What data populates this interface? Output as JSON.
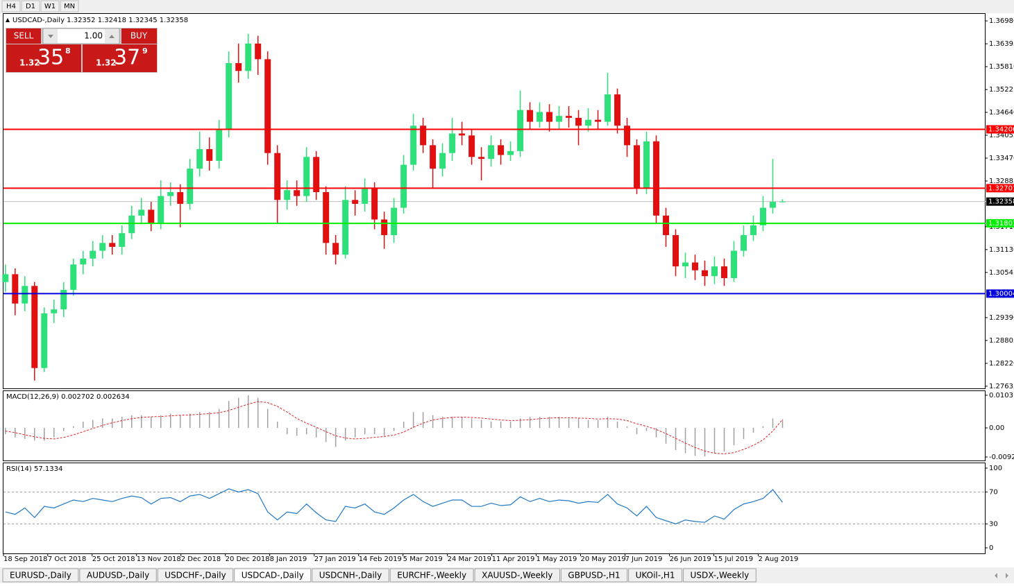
{
  "toolbar": {
    "timeframes": [
      "H4",
      "D1",
      "W1",
      "MN"
    ]
  },
  "chart_header": "USDCAD-,Daily  1.32352 1.32418 1.32345 1.32358",
  "trade_panel": {
    "sell_label": "SELL",
    "buy_label": "BUY",
    "lot": "1.00",
    "sell_price": {
      "prefix": "1.32",
      "pips": "35",
      "point": "8"
    },
    "buy_price": {
      "prefix": "1.32",
      "pips": "37",
      "point": "9"
    }
  },
  "chart_data": [
    {
      "type": "candlestick",
      "up_color": "#2ee07a",
      "down_color": "#e01010",
      "xlim": [
        -0.2,
        100.9
      ],
      "ylim": [
        1.2758,
        1.3716
      ],
      "yticks": [
        {
          "value": 1.3698,
          "label": "1.36980"
        },
        {
          "value": 1.36395,
          "label": "1.36395"
        },
        {
          "value": 1.3581,
          "label": "1.35810"
        },
        {
          "value": 1.35225,
          "label": "1.35225"
        },
        {
          "value": 1.3464,
          "label": "1.34640"
        },
        {
          "value": 1.34055,
          "label": "1.34055"
        },
        {
          "value": 1.3347,
          "label": "1.33470"
        },
        {
          "value": 1.32885,
          "label": "1.32885"
        },
        {
          "value": 1.31715,
          "label": "1.31715"
        },
        {
          "value": 1.3113,
          "label": "1.31130"
        },
        {
          "value": 1.30545,
          "label": "1.30545"
        },
        {
          "value": 1.2939,
          "label": "1.29390"
        },
        {
          "value": 1.28805,
          "label": "1.28805"
        },
        {
          "value": 1.2822,
          "label": "1.28220"
        },
        {
          "value": 1.27635,
          "label": "1.27635"
        }
      ],
      "xticks": [
        {
          "value": -0.2,
          "label": "18 Sep 2018"
        },
        {
          "value": 4.36,
          "label": "7 Oct 2018"
        },
        {
          "value": 8.93,
          "label": "25 Oct 2018"
        },
        {
          "value": 13.5,
          "label": "13 Nov 2018"
        },
        {
          "value": 18.07,
          "label": "2 Dec 2018"
        },
        {
          "value": 22.64,
          "label": "20 Dec 2018"
        },
        {
          "value": 27.21,
          "label": "8 Jan 2019"
        },
        {
          "value": 31.79,
          "label": "27 Jan 2019"
        },
        {
          "value": 36.36,
          "label": "14 Feb 2019"
        },
        {
          "value": 40.93,
          "label": "5 Mar 2019"
        },
        {
          "value": 45.5,
          "label": "24 Mar 2019"
        },
        {
          "value": 50.07,
          "label": "11 Apr 2019"
        },
        {
          "value": 54.64,
          "label": "1 May 2019"
        },
        {
          "value": 59.21,
          "label": "20 May 2019"
        },
        {
          "value": 63.79,
          "label": "7 Jun 2019"
        },
        {
          "value": 68.36,
          "label": "26 Jun 2019"
        },
        {
          "value": 72.93,
          "label": "15 Jul 2019"
        },
        {
          "value": 77.5,
          "label": "2 Aug 2019"
        }
      ],
      "levels": [
        {
          "value": 1.34206,
          "color": "#ff0000"
        },
        {
          "value": 1.32701,
          "color": "#ff0000"
        },
        {
          "value": 1.31801,
          "color": "#00ee00"
        },
        {
          "value": 1.30004,
          "color": "#0000dd"
        }
      ],
      "last": 1.32358,
      "ohlc": [
        [
          1.303,
          1.3075,
          1.3005,
          1.305
        ],
        [
          1.305,
          1.3065,
          1.2945,
          1.2975
        ],
        [
          1.2975,
          1.3045,
          1.2955,
          1.302
        ],
        [
          1.302,
          1.303,
          1.2778,
          1.281
        ],
        [
          1.281,
          1.2965,
          1.28,
          1.295
        ],
        [
          1.295,
          1.2985,
          1.2925,
          1.296
        ],
        [
          1.296,
          1.303,
          1.294,
          1.301
        ],
        [
          1.301,
          1.309,
          1.2995,
          1.3075
        ],
        [
          1.3075,
          1.311,
          1.305,
          1.309
        ],
        [
          1.309,
          1.3135,
          1.307,
          1.311
        ],
        [
          1.311,
          1.315,
          1.309,
          1.313
        ],
        [
          1.313,
          1.315,
          1.31,
          1.312
        ],
        [
          1.312,
          1.3175,
          1.31,
          1.3155
        ],
        [
          1.3155,
          1.3225,
          1.314,
          1.32
        ],
        [
          1.32,
          1.3245,
          1.318,
          1.3215
        ],
        [
          1.3215,
          1.3235,
          1.316,
          1.318
        ],
        [
          1.318,
          1.329,
          1.3165,
          1.325
        ],
        [
          1.325,
          1.3285,
          1.3225,
          1.326
        ],
        [
          1.326,
          1.328,
          1.317,
          1.323
        ],
        [
          1.323,
          1.3345,
          1.3215,
          1.332
        ],
        [
          1.332,
          1.3415,
          1.33,
          1.337
        ],
        [
          1.337,
          1.34,
          1.3315,
          1.334
        ],
        [
          1.334,
          1.3445,
          1.332,
          1.342
        ],
        [
          1.342,
          1.362,
          1.34,
          1.359
        ],
        [
          1.359,
          1.364,
          1.354,
          1.357
        ],
        [
          1.357,
          1.3665,
          1.355,
          1.364
        ],
        [
          1.364,
          1.366,
          1.356,
          1.36
        ],
        [
          1.36,
          1.362,
          1.333,
          1.336
        ],
        [
          1.336,
          1.338,
          1.318,
          1.324
        ],
        [
          1.324,
          1.329,
          1.3215,
          1.3265
        ],
        [
          1.3265,
          1.329,
          1.3225,
          1.325
        ],
        [
          1.325,
          1.3375,
          1.3235,
          1.335
        ],
        [
          1.335,
          1.3365,
          1.324,
          1.326
        ],
        [
          1.326,
          1.3275,
          1.31,
          1.313
        ],
        [
          1.313,
          1.315,
          1.3075,
          1.31
        ],
        [
          1.31,
          1.3275,
          1.309,
          1.324
        ],
        [
          1.324,
          1.3265,
          1.32,
          1.323
        ],
        [
          1.323,
          1.3295,
          1.321,
          1.327
        ],
        [
          1.327,
          1.3285,
          1.3165,
          1.319
        ],
        [
          1.319,
          1.321,
          1.3115,
          1.315
        ],
        [
          1.315,
          1.3245,
          1.313,
          1.322
        ],
        [
          1.322,
          1.3355,
          1.3205,
          1.333
        ],
        [
          1.333,
          1.346,
          1.3315,
          1.343
        ],
        [
          1.343,
          1.345,
          1.336,
          1.338
        ],
        [
          1.338,
          1.3395,
          1.327,
          1.332
        ],
        [
          1.332,
          1.3385,
          1.33,
          1.336
        ],
        [
          1.336,
          1.345,
          1.334,
          1.341
        ],
        [
          1.341,
          1.344,
          1.338,
          1.3405
        ],
        [
          1.3405,
          1.342,
          1.333,
          1.335
        ],
        [
          1.335,
          1.3375,
          1.329,
          1.3345
        ],
        [
          1.3345,
          1.3405,
          1.3325,
          1.338
        ],
        [
          1.338,
          1.3395,
          1.333,
          1.3355
        ],
        [
          1.3355,
          1.339,
          1.334,
          1.3365
        ],
        [
          1.3365,
          1.352,
          1.335,
          1.347
        ],
        [
          1.347,
          1.349,
          1.342,
          1.344
        ],
        [
          1.344,
          1.349,
          1.3425,
          1.3465
        ],
        [
          1.3465,
          1.3485,
          1.3415,
          1.344
        ],
        [
          1.344,
          1.348,
          1.342,
          1.3455
        ],
        [
          1.3455,
          1.348,
          1.3425,
          1.345
        ],
        [
          1.345,
          1.347,
          1.338,
          1.343
        ],
        [
          1.343,
          1.3475,
          1.3415,
          1.3445
        ],
        [
          1.3445,
          1.347,
          1.342,
          1.344
        ],
        [
          1.344,
          1.3565,
          1.343,
          1.351
        ],
        [
          1.351,
          1.3525,
          1.341,
          1.343
        ],
        [
          1.343,
          1.345,
          1.335,
          1.338
        ],
        [
          1.338,
          1.3395,
          1.3255,
          1.327
        ],
        [
          1.327,
          1.3415,
          1.3255,
          1.339
        ],
        [
          1.339,
          1.3405,
          1.318,
          1.32
        ],
        [
          1.32,
          1.322,
          1.312,
          1.315
        ],
        [
          1.315,
          1.3165,
          1.3045,
          1.307
        ],
        [
          1.307,
          1.3105,
          1.304,
          1.308
        ],
        [
          1.308,
          1.31,
          1.3035,
          1.306
        ],
        [
          1.306,
          1.3085,
          1.302,
          1.3045
        ],
        [
          1.3045,
          1.3095,
          1.3025,
          1.307
        ],
        [
          1.307,
          1.309,
          1.302,
          1.304
        ],
        [
          1.304,
          1.3135,
          1.303,
          1.311
        ],
        [
          1.311,
          1.3175,
          1.3095,
          1.315
        ],
        [
          1.315,
          1.32,
          1.3135,
          1.3175
        ],
        [
          1.3175,
          1.325,
          1.316,
          1.322
        ],
        [
          1.322,
          1.3345,
          1.3205,
          1.3235
        ],
        [
          1.32352,
          1.32418,
          1.32345,
          1.32358
        ]
      ]
    },
    {
      "type": "macd",
      "title": "MACD(12,26,9) 0.002702 0.002634",
      "xlim": [
        -0.2,
        100.9
      ],
      "ylim": [
        -0.01051,
        0.01139
      ],
      "color": "#a0a0a0",
      "signal_color": "#e02020",
      "yticks": [
        0.010311,
        {
          "value": 0,
          "label": "0.00"
        },
        {
          "value": -0.0092,
          "label": "-0.00920"
        }
      ],
      "values": [
        -0.002,
        -0.003,
        -0.0035,
        -0.004,
        -0.004,
        -0.003,
        -0.001,
        0.0005,
        0.002,
        0.0025,
        0.003,
        0.003,
        0.0035,
        0.004,
        0.004,
        0.0035,
        0.004,
        0.0045,
        0.004,
        0.0045,
        0.005,
        0.005,
        0.006,
        0.0085,
        0.0095,
        0.0103,
        0.0095,
        0.006,
        0.002,
        -0.002,
        -0.0025,
        -0.002,
        -0.003,
        -0.0045,
        -0.006,
        -0.004,
        -0.003,
        -0.002,
        -0.002,
        -0.0025,
        -0.001,
        0.002,
        0.005,
        0.005,
        0.004,
        0.0035,
        0.0035,
        0.0035,
        0.003,
        0.0025,
        0.002,
        0.002,
        0.002,
        0.003,
        0.0035,
        0.0035,
        0.0035,
        0.0035,
        0.003,
        0.003,
        0.0025,
        0.0025,
        0.0035,
        0.002,
        0.0005,
        -0.002,
        -0.001,
        -0.003,
        -0.005,
        -0.007,
        -0.008,
        -0.0088,
        -0.009,
        -0.008,
        -0.0075,
        -0.0055,
        -0.0035,
        -0.0015,
        0.0005,
        0.003,
        0.002702
      ],
      "signal": [
        -0.001,
        -0.0015,
        -0.0022,
        -0.0028,
        -0.0033,
        -0.0035,
        -0.003,
        -0.0022,
        -0.0012,
        -0.0002,
        0.0008,
        0.0016,
        0.0023,
        0.0029,
        0.0033,
        0.0035,
        0.0036,
        0.0038,
        0.004,
        0.0041,
        0.0043,
        0.0045,
        0.0048,
        0.0055,
        0.0065,
        0.0075,
        0.0083,
        0.008,
        0.0068,
        0.005,
        0.003,
        0.0015,
        0.0002,
        -0.0012,
        -0.0025,
        -0.0032,
        -0.0035,
        -0.0033,
        -0.003,
        -0.0027,
        -0.0023,
        -0.0013,
        0.0002,
        0.0015,
        0.0025,
        0.003,
        0.0033,
        0.0034,
        0.0033,
        0.0031,
        0.0028,
        0.0025,
        0.0023,
        0.0024,
        0.0026,
        0.0029,
        0.0031,
        0.0032,
        0.0032,
        0.0031,
        0.003,
        0.0028,
        0.0029,
        0.0028,
        0.0023,
        0.0013,
        0.0005,
        -0.0005,
        -0.0018,
        -0.0033,
        -0.0048,
        -0.0062,
        -0.0073,
        -0.008,
        -0.0082,
        -0.0078,
        -0.0068,
        -0.0055,
        -0.0038,
        -0.001,
        0.002634
      ]
    },
    {
      "type": "line",
      "title": "RSI(14) 57.1334",
      "xlim": [
        -0.2,
        100.9
      ],
      "ylim": [
        -7,
        106.1
      ],
      "color": "#1f78c8",
      "yticks": [
        100,
        70,
        30,
        0
      ],
      "levels": [
        70,
        30
      ],
      "values": [
        45,
        42,
        50,
        38,
        52,
        50,
        55,
        60,
        58,
        62,
        60,
        58,
        62,
        65,
        63,
        55,
        62,
        63,
        58,
        65,
        67,
        62,
        68,
        74,
        70,
        73,
        68,
        45,
        35,
        45,
        43,
        55,
        44,
        35,
        33,
        52,
        50,
        55,
        45,
        42,
        50,
        60,
        67,
        58,
        52,
        56,
        60,
        60,
        52,
        52,
        56,
        53,
        54,
        64,
        58,
        62,
        58,
        60,
        59,
        56,
        58,
        57,
        67,
        55,
        50,
        40,
        52,
        38,
        34,
        30,
        35,
        33,
        32,
        40,
        36,
        48,
        55,
        58,
        62,
        73,
        57.1334
      ]
    }
  ],
  "tabs": {
    "items": [
      "EURUSD-,Daily",
      "AUDUSD-,Daily",
      "USDCHF-,Daily",
      "USDCAD-,Daily",
      "USDCNH-,Daily",
      "EURCHF-,Weekly",
      "XAUUSD-,Weekly",
      "GBPUSD-,H1",
      "UKOil-,H1",
      "USDX-,Weekly"
    ],
    "active": 3
  }
}
